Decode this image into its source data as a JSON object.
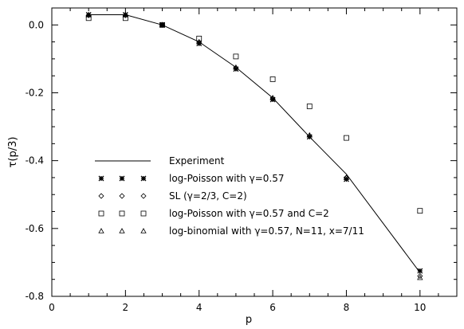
{
  "chart_data": {
    "type": "scatter",
    "title": "",
    "xlabel": "p",
    "ylabel": "τ(p/3)",
    "xlim": [
      0,
      11
    ],
    "ylim": [
      -0.8,
      0.05
    ],
    "x_ticks": [
      0,
      2,
      4,
      6,
      8,
      10
    ],
    "x_tick_labels": [
      "0",
      "2",
      "4",
      "6",
      "8",
      "10"
    ],
    "y_ticks": [
      0.0,
      -0.2,
      -0.4,
      -0.6,
      -0.8
    ],
    "y_tick_labels": [
      "0.0",
      "-0.2",
      "-0.4",
      "-0.6",
      "-0.8"
    ],
    "grid": false,
    "legend_position": "bottom-left",
    "series": [
      {
        "name": "Experiment",
        "marker": "line",
        "x": [
          1,
          2,
          3,
          4,
          5,
          6,
          7,
          8,
          10
        ],
        "y": [
          0.03,
          0.03,
          0.0,
          -0.05,
          -0.125,
          -0.215,
          -0.33,
          -0.44,
          -0.73
        ]
      },
      {
        "name": "log-Poisson with γ=0.57",
        "marker": "asterisk",
        "x": [
          1,
          2,
          3,
          4,
          5,
          6,
          7,
          8,
          10
        ],
        "y": [
          0.03,
          0.03,
          0.0,
          -0.055,
          -0.13,
          -0.22,
          -0.33,
          -0.455,
          -0.725
        ]
      },
      {
        "name": "SL (γ=2/3, C=2)",
        "marker": "diamond",
        "x": [
          1,
          2,
          3,
          4,
          5,
          6,
          7,
          8,
          10
        ],
        "y": [
          0.028,
          0.028,
          0.0,
          -0.053,
          -0.128,
          -0.218,
          -0.328,
          -0.45,
          -0.74
        ]
      },
      {
        "name": "log-Poisson with γ=0.57 and C=2",
        "marker": "square",
        "x": [
          1,
          2,
          3,
          4,
          5,
          6,
          7,
          8,
          10
        ],
        "y": [
          0.02,
          0.02,
          0.0,
          -0.04,
          -0.093,
          -0.16,
          -0.24,
          -0.333,
          -0.548
        ]
      },
      {
        "name": "log-binomial with  γ=0.57, N=11, x=7/11",
        "marker": "triangle",
        "x": [
          1,
          2,
          3,
          4,
          5,
          6,
          7,
          8,
          10
        ],
        "y": [
          0.03,
          0.03,
          0.0,
          -0.05,
          -0.125,
          -0.215,
          -0.325,
          -0.45,
          -0.745
        ]
      }
    ]
  }
}
